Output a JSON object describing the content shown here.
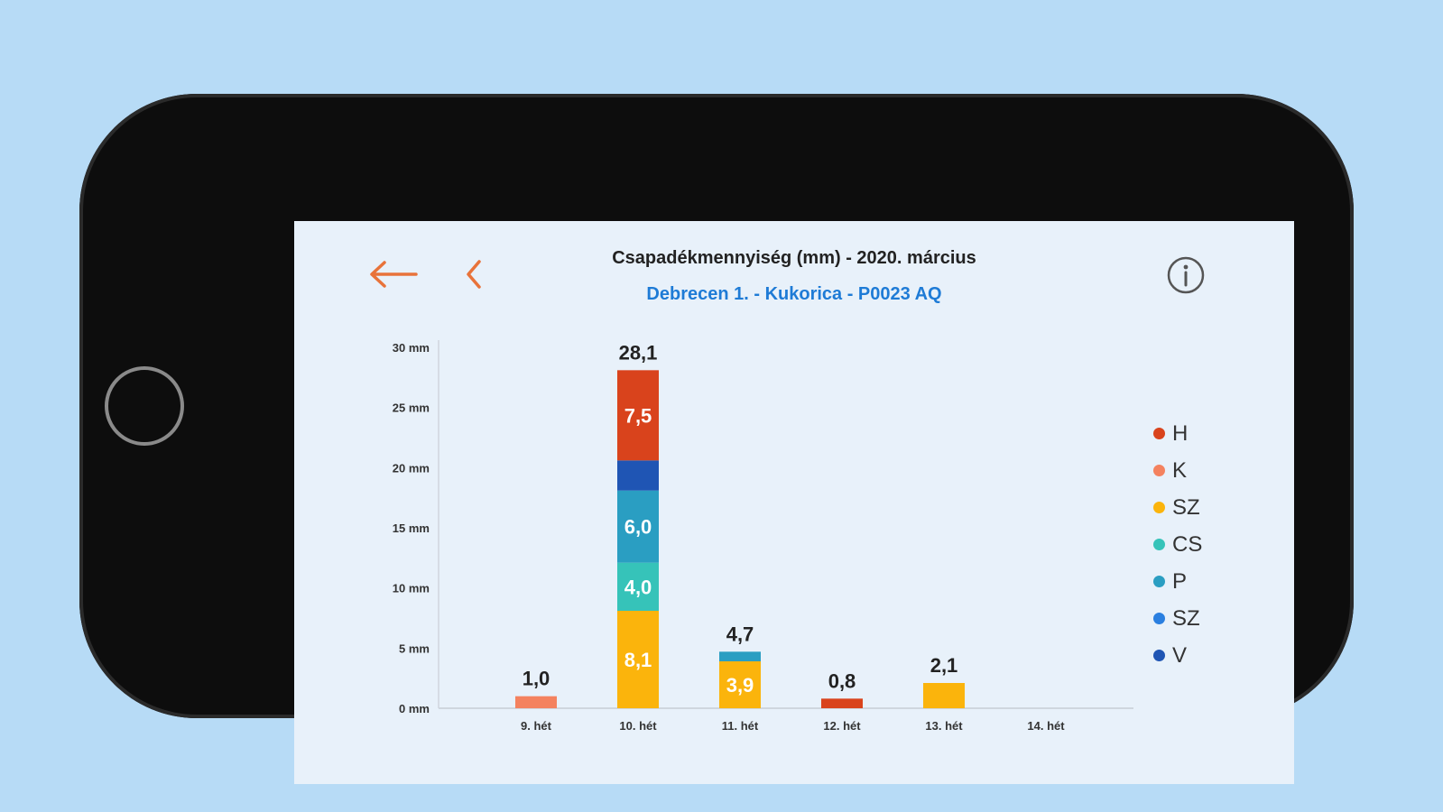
{
  "header": {
    "title": "Csapadékmennyiség (mm) - 2020. március",
    "subtitle": "Debrecen 1. - Kukorica - P0023 AQ",
    "back_icon": "arrow-left-icon",
    "prev_icon": "chevron-left-icon",
    "info_icon": "info-icon"
  },
  "colors": {
    "accent": "#e8733a",
    "subtitle": "#1e7bd6",
    "background": "#b7dbf6",
    "screen": "#e8f1fa"
  },
  "legend": [
    {
      "label": "H",
      "color": "#d9431c"
    },
    {
      "label": "K",
      "color": "#f4825f"
    },
    {
      "label": "SZ",
      "color": "#fbb40c"
    },
    {
      "label": "CS",
      "color": "#36c3b9"
    },
    {
      "label": "P",
      "color": "#2a9ec2"
    },
    {
      "label": "SZ",
      "color": "#2a7fe0"
    },
    {
      "label": "V",
      "color": "#1f55b4"
    }
  ],
  "chart_data": {
    "type": "bar",
    "stacked": true,
    "categories": [
      "9. hét",
      "10. hét",
      "11. hét",
      "12. hét",
      "13. hét",
      "14. hét"
    ],
    "y_ticks": [
      "0 mm",
      "5 mm",
      "10 mm",
      "15 mm",
      "20 mm",
      "25 mm",
      "30 mm"
    ],
    "ylim": [
      0,
      30
    ],
    "totals": [
      "1,0",
      "28,1",
      "4,7",
      "0,8",
      "2,1",
      ""
    ],
    "bars": [
      {
        "category": "9. hét",
        "total": 1.0,
        "segments": [
          {
            "series": "K",
            "value": 1.0,
            "label": ""
          }
        ]
      },
      {
        "category": "10. hét",
        "total": 28.1,
        "segments": [
          {
            "series": "SZ",
            "value": 8.1,
            "label": "8,1"
          },
          {
            "series": "CS",
            "value": 4.0,
            "label": "4,0"
          },
          {
            "series": "P",
            "value": 6.0,
            "label": "6,0"
          },
          {
            "series": "V",
            "value": 2.5,
            "label": ""
          },
          {
            "series": "H",
            "value": 7.5,
            "label": "7,5"
          }
        ]
      },
      {
        "category": "11. hét",
        "total": 4.7,
        "segments": [
          {
            "series": "SZ",
            "value": 3.9,
            "label": "3,9"
          },
          {
            "series": "P",
            "value": 0.8,
            "label": ""
          }
        ]
      },
      {
        "category": "12. hét",
        "total": 0.8,
        "segments": [
          {
            "series": "H",
            "value": 0.8,
            "label": ""
          }
        ]
      },
      {
        "category": "13. hét",
        "total": 2.1,
        "segments": [
          {
            "series": "SZ",
            "value": 2.1,
            "label": ""
          }
        ]
      },
      {
        "category": "14. hét",
        "total": 0,
        "segments": []
      }
    ],
    "grid": false,
    "legend_position": "right"
  }
}
